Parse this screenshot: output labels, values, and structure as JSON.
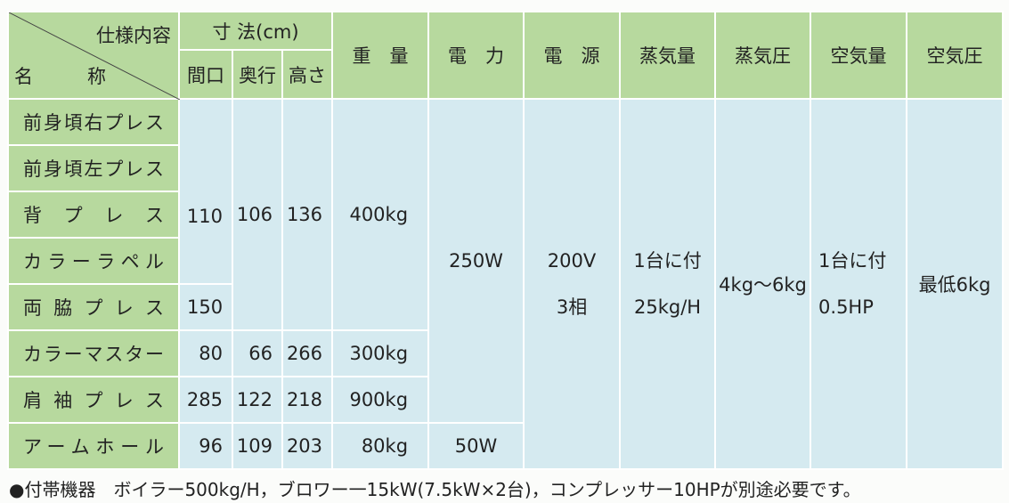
{
  "header": {
    "spec_label": "仕様内容",
    "name_label": "名　称",
    "dimensions": "寸 法(cm)",
    "dimension_cols": [
      "間口",
      "奥行",
      "高さ"
    ],
    "columns": [
      "重　量",
      "電　力",
      "電　源",
      "蒸気量",
      "蒸気圧",
      "空気量",
      "空気圧"
    ]
  },
  "names": [
    "前身頃右プレス",
    "前身頃左プレス",
    "背プレス",
    "カラーラペル",
    "両脇プレス",
    "カラーマスター",
    "肩袖プレス",
    "アームホール"
  ],
  "body": {
    "width": [
      "110",
      "150",
      "80",
      "285",
      "96"
    ],
    "depth": [
      "106",
      "66",
      "122",
      "109"
    ],
    "height": [
      "136",
      "266",
      "218",
      "203"
    ],
    "weight": [
      "400kg",
      "300kg",
      "900kg",
      "80kg"
    ],
    "power": [
      "250W",
      "50W"
    ],
    "source": [
      "200V",
      "3相"
    ],
    "steam_amount": [
      "1台に付",
      "25kg/H"
    ],
    "steam_pressure": "4kg〜6kg",
    "air_amount": [
      "1台に付",
      "0.5HP"
    ],
    "air_pressure": "最低6kg"
  },
  "footnote": "●付帯機器　ボイラー500kg/H，ブロワー一15kW(7.5kW×2台)，コンプレッサー10HPが別途必要です。"
}
